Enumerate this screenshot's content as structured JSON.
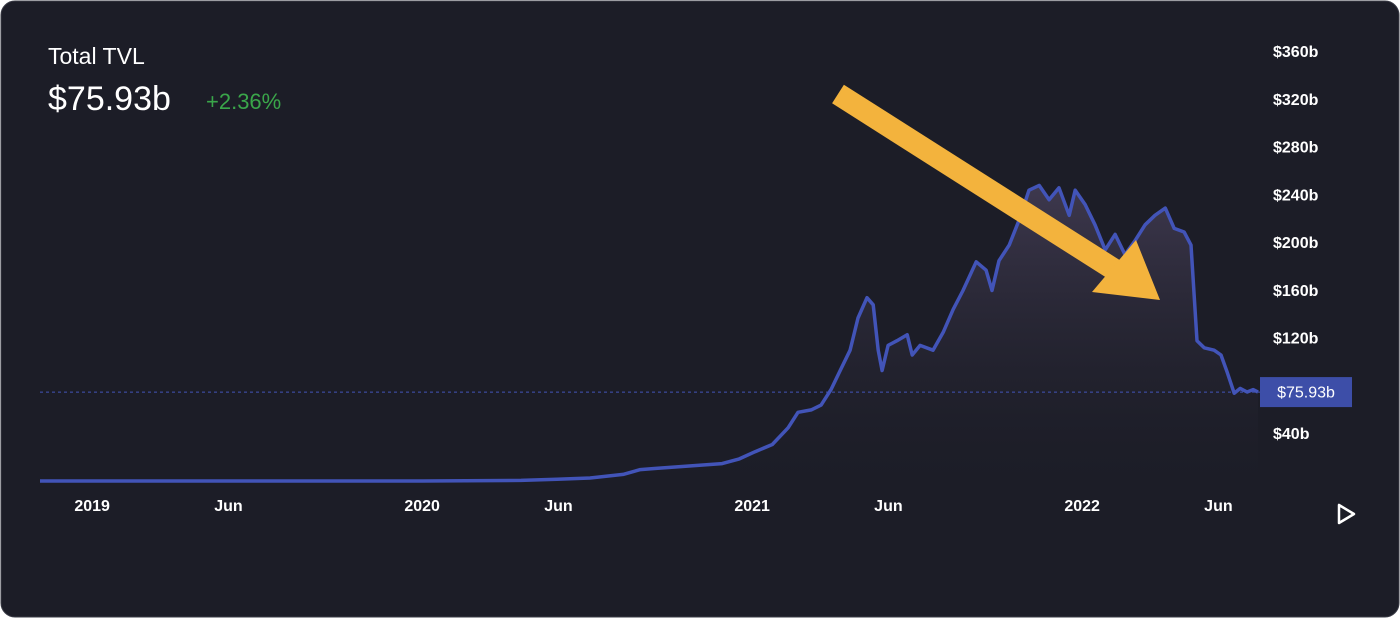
{
  "chart_data": {
    "type": "area",
    "title": "Total TVL",
    "current_value": 75.93,
    "current_value_label": "$75.93b",
    "change": "+2.36%",
    "color": "#4254b8",
    "x": [
      2018.842,
      2019.0,
      2019.5,
      2020.0,
      2020.3,
      2020.409,
      2020.509,
      2020.609,
      2020.661,
      2020.709,
      2020.809,
      2020.909,
      2020.961,
      2021.009,
      2021.061,
      2021.109,
      2021.139,
      2021.179,
      2021.209,
      2021.239,
      2021.267,
      2021.297,
      2021.321,
      2021.348,
      2021.367,
      2021.382,
      2021.394,
      2021.412,
      2021.439,
      2021.47,
      2021.485,
      2021.509,
      2021.548,
      2021.579,
      2021.609,
      2021.639,
      2021.679,
      2021.709,
      2021.727,
      2021.748,
      2021.779,
      2021.809,
      2021.839,
      2021.87,
      2021.9,
      2021.93,
      2021.961,
      2021.979,
      2022.009,
      2022.039,
      2022.07,
      2022.1,
      2022.13,
      2022.161,
      2022.191,
      2022.221,
      2022.252,
      2022.279,
      2022.309,
      2022.33,
      2022.348,
      2022.37,
      2022.4,
      2022.421,
      2022.439,
      2022.461,
      2022.479,
      2022.5,
      2022.518,
      2022.533
    ],
    "values": [
      1.5,
      1.5,
      1.5,
      1.5,
      2,
      3,
      4,
      7,
      11,
      12,
      14,
      16,
      20,
      26,
      32,
      46,
      59,
      61,
      65,
      78,
      94,
      111,
      138,
      155,
      149,
      111,
      94,
      115,
      119,
      124,
      107,
      115,
      111,
      126,
      145,
      161,
      185,
      178,
      161,
      186,
      199,
      220,
      245,
      249,
      237,
      247,
      224,
      245,
      233,
      216,
      195,
      208,
      191,
      203,
      216,
      224,
      230,
      213,
      210,
      199,
      119,
      113,
      111,
      107,
      93,
      75,
      79,
      76,
      78,
      75.93
    ],
    "xlim": [
      2018.842,
      2022.533
    ],
    "xticks": [
      2019,
      {
        "value": 2019.413,
        "label": "Jun"
      },
      2020,
      {
        "value": 2020.413,
        "label": "Jun"
      },
      2021,
      {
        "value": 2021.413,
        "label": "Jun"
      },
      2022,
      {
        "value": 2022.413,
        "label": "Jun"
      }
    ],
    "ylim": [
      0,
      380
    ],
    "yticks": [
      {
        "value": 40,
        "label": "$40b"
      },
      {
        "value": 120,
        "label": "$120b"
      },
      {
        "value": 160,
        "label": "$160b"
      },
      {
        "value": 200,
        "label": "$200b"
      },
      {
        "value": 240,
        "label": "$240b"
      },
      {
        "value": 280,
        "label": "$280b"
      },
      {
        "value": 320,
        "label": "$320b"
      },
      {
        "value": 360,
        "label": "$360b"
      }
    ]
  }
}
